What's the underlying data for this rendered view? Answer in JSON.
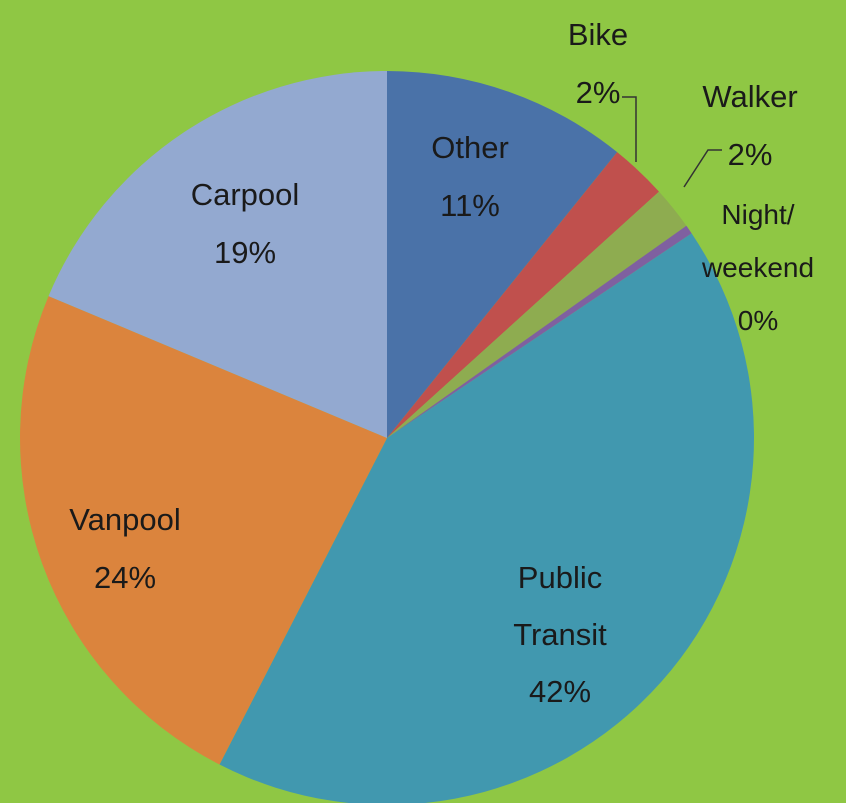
{
  "chart_data": {
    "type": "pie",
    "categories": [
      "Other",
      "Bike",
      "Walker",
      "Night/ weekend",
      "Public Transit",
      "Vanpool",
      "Carpool"
    ],
    "values": [
      10.8,
      2.5,
      1.9,
      0.4,
      42,
      23.8,
      18.7
    ],
    "value_labels": [
      "11%",
      "2%",
      "2%",
      "0%",
      "42%",
      "24%",
      "19%"
    ],
    "colors": [
      "#4a72a8",
      "#c0504d",
      "#8eac50",
      "#7f60a0",
      "#4198af",
      "#db843d",
      "#93a9d0"
    ]
  }
}
